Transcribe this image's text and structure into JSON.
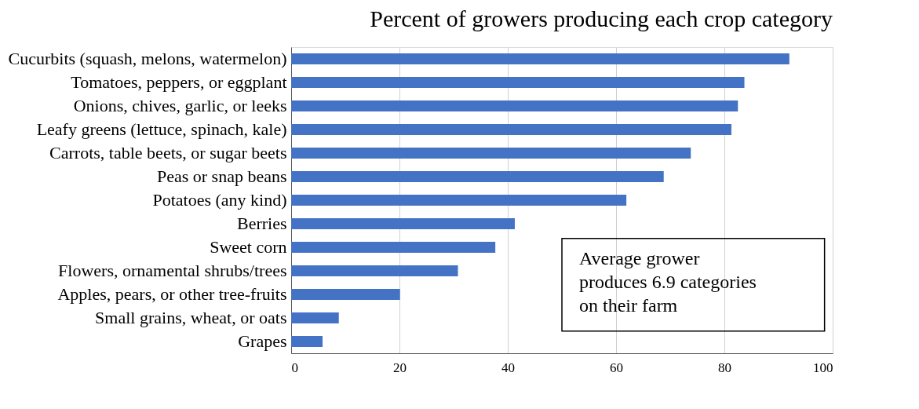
{
  "chart_data": {
    "type": "bar",
    "orientation": "horizontal",
    "title": "Percent of growers producing each crop category",
    "categories": [
      "Cucurbits (squash, melons, watermelon)",
      "Tomatoes, peppers, or eggplant",
      "Onions, chives, garlic, or leeks",
      "Leafy greens (lettuce, spinach, kale)",
      "Carrots, table beets, or sugar beets",
      "Peas or snap beans",
      "Potatoes (any kind)",
      "Berries",
      "Sweet corn",
      "Flowers, ornamental shrubs/trees",
      "Apples, pears, or other tree-fruits",
      "Small grains, wheat, or oats",
      "Grapes"
    ],
    "values": [
      92,
      83.7,
      82.5,
      81.3,
      73.8,
      68.8,
      61.9,
      41.3,
      37.7,
      30.8,
      20.1,
      8.8,
      5.8
    ],
    "color": "#4472c4",
    "xlim": [
      0,
      100
    ],
    "xticks": [
      0,
      20,
      40,
      60,
      80,
      100
    ],
    "grid": "x",
    "annotations": [
      "Average grower\nproduces 6.9 categories\non their farm"
    ]
  }
}
